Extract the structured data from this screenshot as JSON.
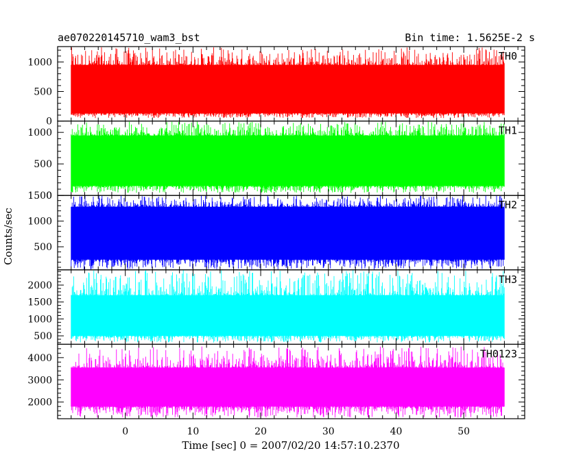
{
  "chart_data": {
    "type": "line",
    "title_left": "ae070220145710_wam3_bst",
    "title_right": "Bin time: 1.5625E-2 s",
    "xlabel": "Time [sec] 0 = 2007/02/20 14:57:10.2370",
    "ylabel": "Counts/sec",
    "xlim": [
      -10,
      59
    ],
    "x_ticks": [
      0,
      10,
      20,
      30,
      40,
      50
    ],
    "data_x_range": [
      -8,
      56
    ],
    "grid": false,
    "panels": [
      {
        "name": "TH0",
        "color": "#ff0000",
        "ylim": [
          0,
          1260
        ],
        "y_ticks": [
          0,
          500,
          1000
        ],
        "baseline": 500,
        "noise_low": 50,
        "noise_high": 1250,
        "lower_envelope": 130,
        "upper_envelope": 950
      },
      {
        "name": "TH1",
        "color": "#00ff00",
        "ylim": [
          0,
          1180
        ],
        "y_ticks": [
          0,
          500,
          1000
        ],
        "baseline": 550,
        "noise_low": 40,
        "noise_high": 1170,
        "lower_envelope": 150,
        "upper_envelope": 950
      },
      {
        "name": "TH2",
        "color": "#0000ff",
        "ylim": [
          50,
          1500
        ],
        "y_ticks": [
          500,
          1000,
          1500
        ],
        "baseline": 700,
        "noise_low": 60,
        "noise_high": 1500,
        "lower_envelope": 250,
        "upper_envelope": 1280
      },
      {
        "name": "TH3",
        "color": "#00ffff",
        "ylim": [
          250,
          2450
        ],
        "y_ticks": [
          500,
          1000,
          1500,
          2000
        ],
        "baseline": 1050,
        "noise_low": 300,
        "noise_high": 2450,
        "lower_envelope": 500,
        "upper_envelope": 1700
      },
      {
        "name": "TH0123",
        "color": "#ff00ff",
        "ylim": [
          1250,
          4600
        ],
        "y_ticks": [
          2000,
          3000,
          4000
        ],
        "baseline": 2700,
        "noise_low": 1300,
        "noise_high": 4500,
        "lower_envelope": 1800,
        "upper_envelope": 3550
      }
    ]
  }
}
